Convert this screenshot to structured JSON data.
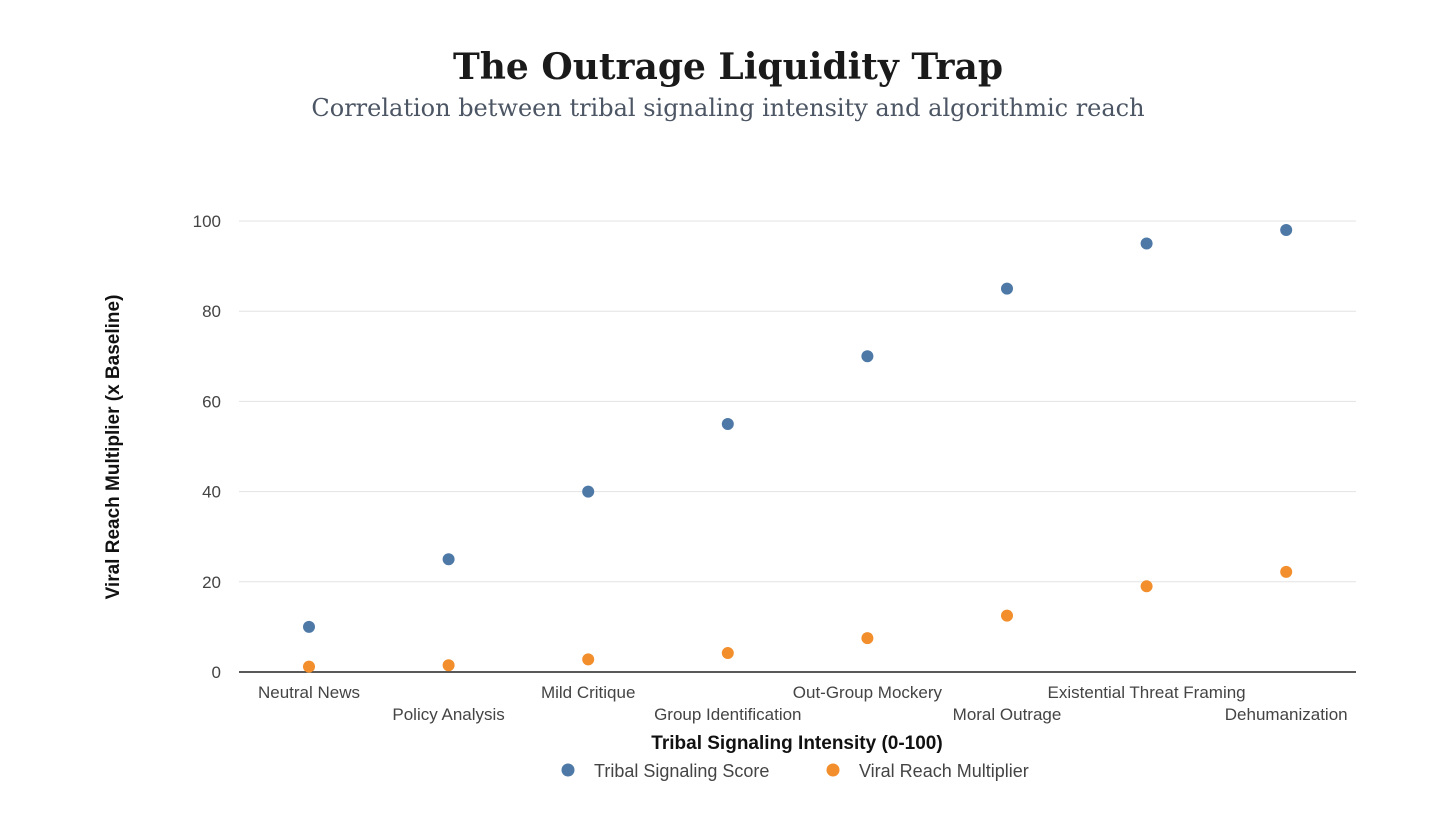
{
  "chart_data": {
    "type": "scatter",
    "title": "The Outrage Liquidity Trap",
    "subtitle": "Correlation between tribal signaling intensity and algorithmic reach",
    "xlabel": "Tribal Signaling Intensity (0-100)",
    "ylabel": "Viral Reach Multiplier (x Baseline)",
    "categories": [
      "Neutral News",
      "Policy Analysis",
      "Mild Critique",
      "Group Identification",
      "Out-Group Mockery",
      "Moral Outrage",
      "Existential Threat Framing",
      "Dehumanization"
    ],
    "series": [
      {
        "name": "Tribal Signaling Score",
        "color": "#4e79a7",
        "values": [
          10,
          25,
          40,
          55,
          70,
          85,
          95,
          98
        ]
      },
      {
        "name": "Viral Reach Multiplier",
        "color": "#f28e2b",
        "values": [
          1.2,
          1.5,
          2.8,
          4.2,
          7.5,
          12.5,
          19,
          22.2
        ]
      }
    ],
    "ylim": [
      0,
      100
    ],
    "yticks": [
      0,
      20,
      40,
      60,
      80,
      100
    ],
    "grid": true,
    "legend_position": "bottom"
  }
}
